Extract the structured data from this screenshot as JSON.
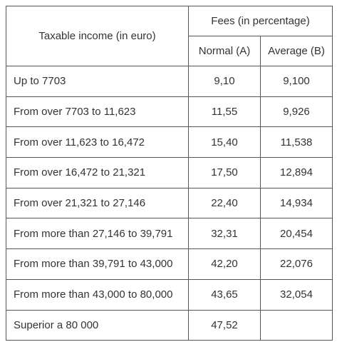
{
  "table": {
    "header": {
      "income": "Taxable income (in euro)",
      "fees": "Fees (in percentage)",
      "normal": "Normal (A)",
      "average": "Average (B)"
    },
    "rows": [
      [
        "Up to 7703",
        "9,10",
        "9,100"
      ],
      [
        "From over 7703 to 11,623",
        "11,55",
        "9,926"
      ],
      [
        "From over 11,623 to 16,472",
        "15,40",
        "11,538"
      ],
      [
        "From over 16,472 to 21,321",
        "17,50",
        "12,894"
      ],
      [
        "From over 21,321 to 27,146",
        "22,40",
        "14,934"
      ],
      [
        "From more than 27,146 to 39,791",
        "32,31",
        "20,454"
      ],
      [
        "From more than 39,791 to 43,000",
        "42,20",
        "22,076"
      ],
      [
        "From more than 43,000 to 80,000",
        "43,65",
        "32,054"
      ],
      [
        "Superior a 80 000",
        "47,52"
      ]
    ]
  }
}
